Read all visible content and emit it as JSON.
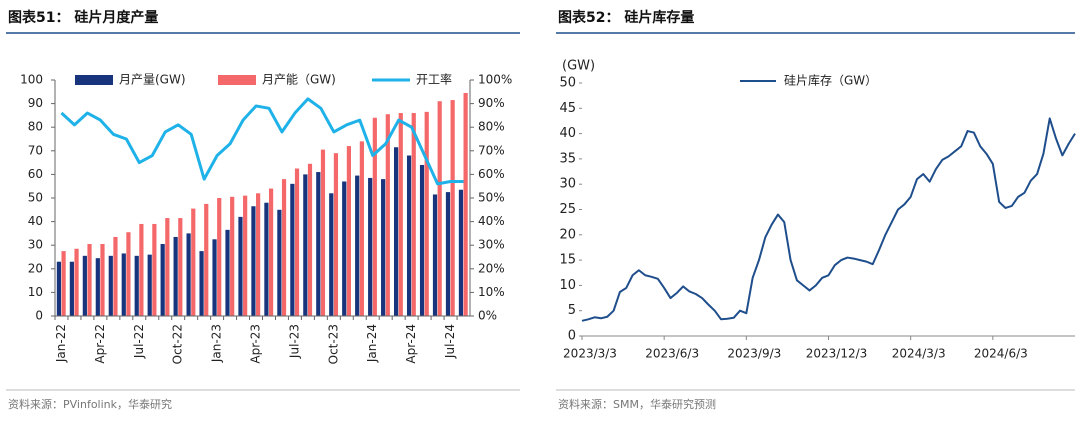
{
  "chart_data": [
    {
      "type": "bar-line",
      "title": "图表51： 硅片月度产量",
      "source": "资料来源：PVinfolink，华泰研究",
      "categories": [
        "Jan-22",
        null,
        null,
        "Apr-22",
        null,
        null,
        "Jul-22",
        null,
        null,
        "Oct-22",
        null,
        null,
        "Jan-23",
        null,
        null,
        "Apr-23",
        null,
        null,
        "Jul-23",
        null,
        null,
        "Oct-23",
        null,
        null,
        "Jan-24",
        null,
        null,
        "Apr-24",
        null,
        null,
        "Jul-24",
        null
      ],
      "series": [
        {
          "name": "月产量(GW)",
          "color": "#17347c",
          "values": [
            23,
            23,
            25.5,
            24.5,
            25.5,
            26.5,
            25.5,
            26,
            30.5,
            33.5,
            35,
            27.5,
            32.5,
            36.5,
            42,
            46.5,
            48,
            45,
            56,
            60,
            61,
            52,
            57,
            59.5,
            58.5,
            58,
            71.5,
            68,
            64,
            51.5,
            52.5,
            53.5
          ]
        },
        {
          "name": "月产能（GW)",
          "color": "#f4686a",
          "values": [
            27.5,
            28.5,
            30.5,
            30.5,
            33.5,
            35.5,
            39,
            39,
            41.5,
            41.5,
            45.5,
            47.5,
            50,
            50.5,
            51,
            52,
            54,
            58,
            62.5,
            64.5,
            70.5,
            69,
            72,
            74,
            84,
            85.5,
            86,
            86,
            86.5,
            91,
            91.5,
            94.5
          ]
        },
        {
          "name": "开工率",
          "color": "#1eb2e8",
          "axis": "y2",
          "values": [
            86,
            81,
            86,
            83,
            77,
            75,
            65,
            68,
            78,
            81,
            77,
            58,
            68,
            73,
            83,
            89,
            88,
            78,
            86,
            92,
            88,
            78,
            81,
            83,
            68,
            73,
            83,
            80,
            68,
            56,
            57,
            57
          ]
        }
      ],
      "ylim": [
        0,
        100
      ],
      "yticks": [
        0,
        10,
        20,
        30,
        40,
        50,
        60,
        70,
        80,
        90,
        100
      ],
      "y2lim": [
        0,
        100
      ],
      "y2ticks": [
        {
          "value": 0,
          "label": "0%"
        },
        {
          "value": 10,
          "label": "10%"
        },
        {
          "value": 20,
          "label": "20%"
        },
        {
          "value": 30,
          "label": "30%"
        },
        {
          "value": 40,
          "label": "40%"
        },
        {
          "value": 50,
          "label": "50%"
        },
        {
          "value": 60,
          "label": "60%"
        },
        {
          "value": 70,
          "label": "70%"
        },
        {
          "value": 80,
          "label": "80%"
        },
        {
          "value": 90,
          "label": "90%"
        },
        {
          "value": 100,
          "label": "100%"
        }
      ],
      "grid": false
    },
    {
      "type": "line",
      "title": "图表52： 硅片库存量",
      "source": "资料来源：SMM，华泰研究预测",
      "ylabel": "(GW)",
      "categories": [
        "2023/3/3",
        null,
        null,
        null,
        null,
        null,
        null,
        null,
        null,
        null,
        null,
        null,
        null,
        "2023/6/3",
        null,
        null,
        null,
        null,
        null,
        null,
        null,
        null,
        null,
        null,
        null,
        null,
        "2023/9/3",
        null,
        null,
        null,
        null,
        null,
        null,
        null,
        null,
        null,
        null,
        null,
        null,
        "2023/12/3",
        null,
        null,
        null,
        null,
        null,
        null,
        null,
        null,
        null,
        null,
        null,
        null,
        "2024/3/3",
        null,
        null,
        null,
        null,
        null,
        null,
        null,
        null,
        null,
        null,
        null,
        null,
        "2024/6/3",
        null,
        null,
        null,
        null,
        null,
        null,
        null,
        null,
        null,
        null,
        null,
        null,
        null
      ],
      "series": [
        {
          "name": "硅片库存（GW）",
          "color": "#1f4e8c",
          "values": [
            3,
            3.3,
            3.7,
            3.5,
            3.8,
            5,
            8.7,
            9.5,
            12,
            13,
            12,
            11.7,
            11.3,
            9.5,
            7.5,
            8.5,
            9.8,
            8.8,
            8.3,
            7.5,
            6.2,
            5,
            3.3,
            3.4,
            3.6,
            5,
            4.5,
            11.5,
            15,
            19.5,
            22,
            24,
            22.5,
            15,
            11,
            10,
            9,
            10,
            11.5,
            12,
            14,
            15,
            15.5,
            15.3,
            15,
            14.7,
            14.2,
            17,
            20,
            22.5,
            25,
            26,
            27.5,
            31,
            32,
            30.5,
            33,
            34.8,
            35.5,
            36.5,
            37.5,
            40.5,
            40.2,
            37.5,
            36,
            34,
            26.5,
            25.3,
            25.7,
            27.5,
            28.3,
            30.7,
            32,
            36,
            43,
            39,
            35.7,
            38,
            40
          ]
        }
      ],
      "ylim": [
        0,
        50
      ],
      "yticks": [
        0,
        5,
        10,
        15,
        20,
        25,
        30,
        35,
        40,
        45,
        50
      ],
      "grid": false
    }
  ]
}
